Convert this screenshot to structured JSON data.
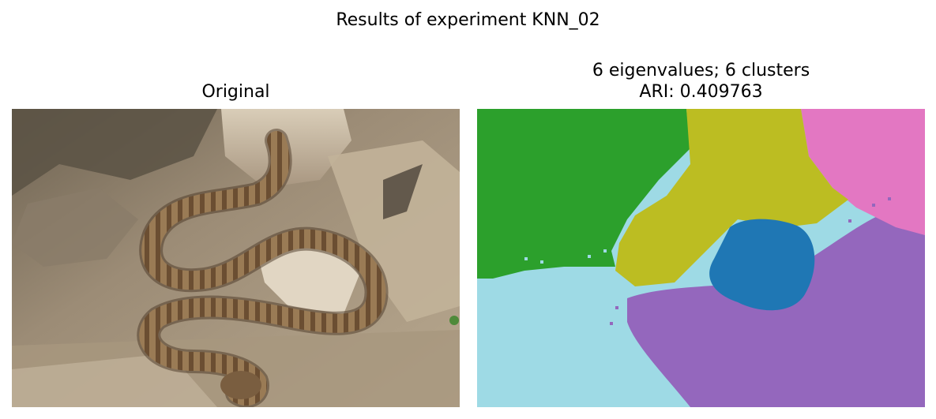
{
  "figure": {
    "suptitle": "Results of experiment KNN_02"
  },
  "left_panel": {
    "title": "Original",
    "image_description_icon": "snake-photo"
  },
  "right_panel": {
    "title_line1": "6 eigenvalues; 6 clusters",
    "title_line2": "ARI: 0.409763",
    "cluster_colors": {
      "green": "#2ca02c",
      "olive": "#bcbd22",
      "pink": "#e377c2",
      "blue": "#1f77b4",
      "purple": "#9467bd",
      "cyan": "#9edae5"
    }
  }
}
